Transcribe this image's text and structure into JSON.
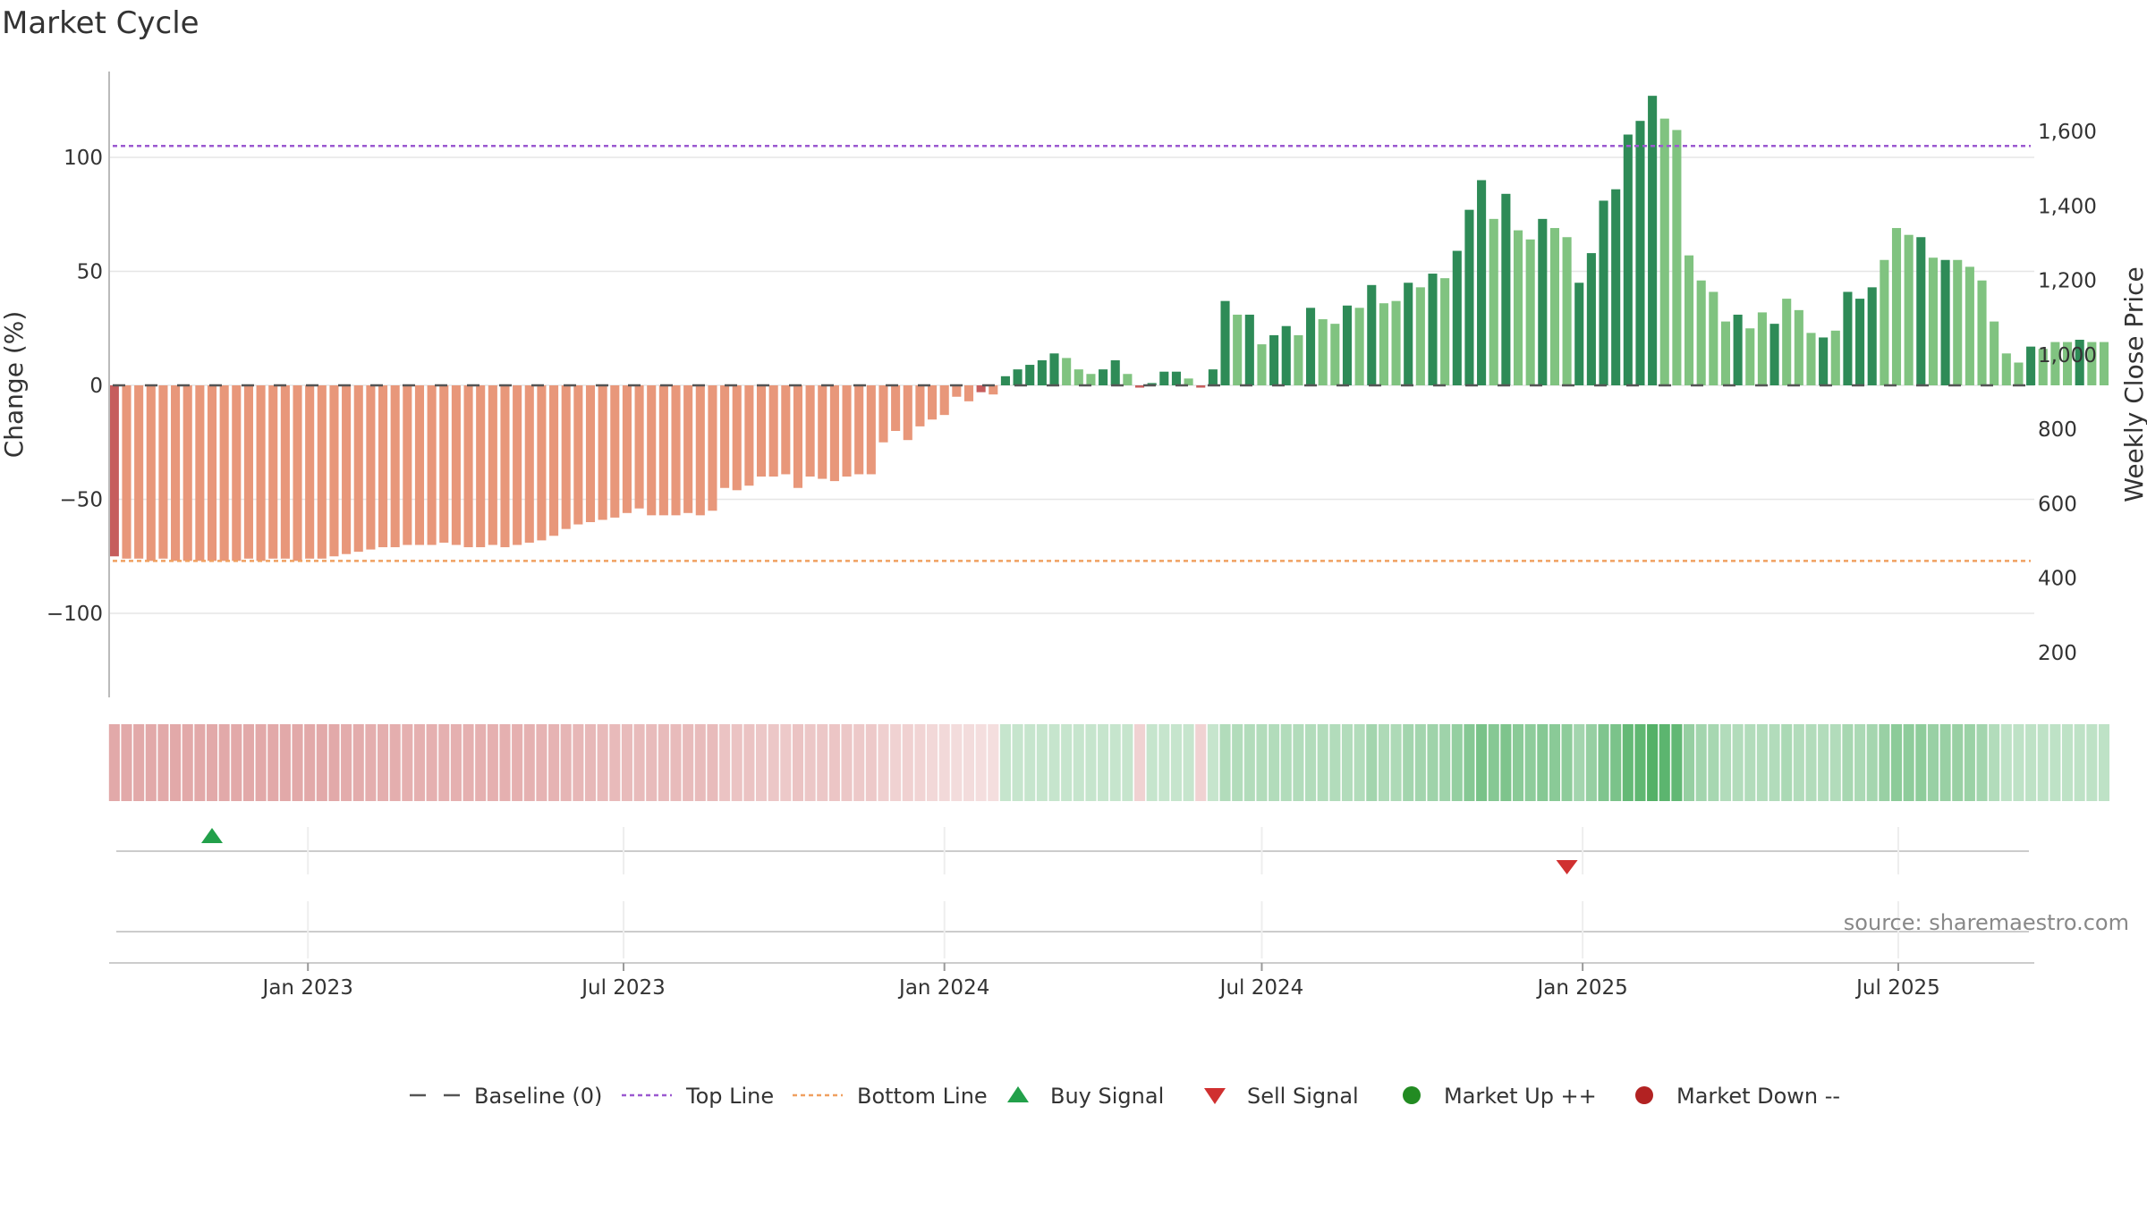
{
  "title": "Market Cycle",
  "source": "source: sharemaestro.com",
  "colors": {
    "bear_dark": "#c65d5d",
    "bear_light": "#e8977a",
    "bull_dark": "#2e8b57",
    "bull_light": "#80c380",
    "top_line": "#9b59d0",
    "bottom_line": "#f0a060",
    "baseline": "#555555",
    "buy": "#22a04a",
    "sell": "#d03030",
    "market_up": "#228b22",
    "market_down": "#b22222"
  },
  "chart_data": {
    "type": "bar",
    "title": "Market Cycle",
    "ylabel": "Change (%)",
    "y2label": "Weekly Close Price",
    "ylim": [
      -138,
      138
    ],
    "y2lim": [
      100,
      1730
    ],
    "yticks": [
      "100",
      "50",
      "0",
      "−50",
      "−100"
    ],
    "ytick_values": [
      100,
      50,
      0,
      -50,
      -100
    ],
    "y2ticks": [
      "1,600",
      "1,400",
      "1,200",
      "1,000",
      "800",
      "600",
      "400",
      "200"
    ],
    "y2tick_values": [
      1600,
      1400,
      1200,
      1000,
      800,
      600,
      400,
      200
    ],
    "x_start": "2022-09-12",
    "x_step_days": 7,
    "xlim": [
      "2022-09-09",
      "2025-09-17"
    ],
    "xticks": [
      {
        "date": "2023-01-01",
        "label": "Jan 2023"
      },
      {
        "date": "2023-07-01",
        "label": "Jul 2023"
      },
      {
        "date": "2024-01-01",
        "label": "Jan 2024"
      },
      {
        "date": "2024-07-01",
        "label": "Jul 2024"
      },
      {
        "date": "2025-01-01",
        "label": "Jan 2025"
      },
      {
        "date": "2025-07-01",
        "label": "Jul 2025"
      }
    ],
    "top_line": 105,
    "bottom_line": -77,
    "baseline": 0,
    "grid": true,
    "legend_position": "bottom",
    "values": [
      -75,
      -76,
      -76,
      -77,
      -76,
      -77,
      -77,
      -77,
      -77,
      -77,
      -77,
      -76,
      -77,
      -76,
      -76,
      -77,
      -76,
      -76,
      -75,
      -74,
      -73,
      -72,
      -71,
      -71,
      -70,
      -70,
      -70,
      -69,
      -70,
      -71,
      -71,
      -70,
      -71,
      -70,
      -69,
      -68,
      -66,
      -63,
      -61,
      -60,
      -59,
      -58,
      -56,
      -54,
      -57,
      -57,
      -57,
      -56,
      -57,
      -55,
      -45,
      -46,
      -44,
      -40,
      -40,
      -39,
      -45,
      -40,
      -41,
      -42,
      -40,
      -39,
      -39,
      -25,
      -20,
      -24,
      -18,
      -15,
      -13,
      -5,
      -7,
      -3,
      -4,
      4,
      7,
      9,
      11,
      14,
      12,
      7,
      5,
      7,
      11,
      5,
      -1,
      1,
      6,
      6,
      3,
      -1,
      7,
      37,
      31,
      31,
      18,
      22,
      26,
      22,
      34,
      29,
      27,
      35,
      34,
      44,
      36,
      37,
      45,
      43,
      49,
      47,
      59,
      77,
      90,
      73,
      84,
      68,
      64,
      73,
      69,
      65,
      45,
      58,
      81,
      86,
      110,
      116,
      127,
      117,
      112,
      57,
      46,
      41,
      28,
      31,
      25,
      32,
      27,
      38,
      33,
      23,
      21,
      24,
      41,
      38,
      43,
      55,
      69,
      66,
      65,
      56,
      55,
      55,
      52,
      46,
      28,
      14,
      10,
      17,
      16,
      19,
      19,
      20,
      19,
      19
    ],
    "shade": [
      0,
      1,
      1,
      1,
      1,
      1,
      1,
      1,
      1,
      1,
      1,
      1,
      1,
      1,
      1,
      1,
      1,
      1,
      1,
      1,
      1,
      1,
      1,
      1,
      1,
      1,
      1,
      1,
      1,
      1,
      1,
      1,
      1,
      1,
      1,
      1,
      1,
      1,
      1,
      1,
      1,
      1,
      1,
      1,
      1,
      1,
      1,
      1,
      1,
      1,
      1,
      1,
      1,
      1,
      1,
      1,
      1,
      1,
      1,
      1,
      1,
      1,
      1,
      1,
      1,
      1,
      1,
      1,
      1,
      1,
      1,
      0,
      1,
      0,
      0,
      0,
      0,
      0,
      1,
      1,
      1,
      0,
      0,
      1,
      0,
      0,
      0,
      0,
      1,
      0,
      0,
      0,
      1,
      0,
      1,
      0,
      0,
      1,
      0,
      1,
      1,
      0,
      1,
      0,
      1,
      1,
      0,
      1,
      0,
      1,
      0,
      0,
      0,
      1,
      0,
      1,
      1,
      0,
      1,
      1,
      0,
      0,
      0,
      0,
      0,
      0,
      0,
      1,
      1,
      1,
      1,
      1,
      1,
      0,
      1,
      1,
      0,
      1,
      1,
      1,
      0,
      1,
      0,
      0,
      0,
      1,
      1,
      1,
      0,
      1,
      0,
      1,
      1,
      1,
      1,
      1,
      1,
      0,
      1,
      1,
      1,
      0,
      1,
      1
    ],
    "strip_intensity": [
      -0.45,
      -0.45,
      -0.45,
      -0.45,
      -0.45,
      -0.45,
      -0.45,
      -0.45,
      -0.45,
      -0.45,
      -0.45,
      -0.45,
      -0.45,
      -0.45,
      -0.45,
      -0.45,
      -0.45,
      -0.45,
      -0.45,
      -0.43,
      -0.42,
      -0.41,
      -0.41,
      -0.41,
      -0.4,
      -0.4,
      -0.4,
      -0.4,
      -0.4,
      -0.4,
      -0.4,
      -0.4,
      -0.4,
      -0.4,
      -0.39,
      -0.38,
      -0.37,
      -0.36,
      -0.35,
      -0.34,
      -0.33,
      -0.33,
      -0.32,
      -0.31,
      -0.32,
      -0.32,
      -0.32,
      -0.31,
      -0.32,
      -0.31,
      -0.26,
      -0.26,
      -0.25,
      -0.23,
      -0.23,
      -0.22,
      -0.26,
      -0.23,
      -0.23,
      -0.24,
      -0.23,
      -0.22,
      -0.22,
      -0.17,
      -0.15,
      -0.16,
      -0.13,
      -0.11,
      -0.1,
      -0.07,
      -0.07,
      -0.06,
      -0.06,
      0.06,
      0.06,
      0.06,
      0.06,
      0.06,
      0.06,
      0.06,
      0.06,
      0.06,
      0.06,
      0.06,
      -0.15,
      0.06,
      0.06,
      0.06,
      0.06,
      -0.15,
      0.06,
      0.14,
      0.14,
      0.14,
      0.14,
      0.14,
      0.14,
      0.14,
      0.14,
      0.14,
      0.14,
      0.14,
      0.14,
      0.2,
      0.16,
      0.16,
      0.2,
      0.2,
      0.22,
      0.22,
      0.26,
      0.32,
      0.37,
      0.32,
      0.35,
      0.3,
      0.28,
      0.32,
      0.3,
      0.28,
      0.2,
      0.25,
      0.34,
      0.36,
      0.45,
      0.47,
      0.52,
      0.48,
      0.46,
      0.25,
      0.2,
      0.18,
      0.14,
      0.14,
      0.14,
      0.14,
      0.14,
      0.17,
      0.14,
      0.14,
      0.14,
      0.14,
      0.18,
      0.17,
      0.19,
      0.24,
      0.29,
      0.28,
      0.28,
      0.24,
      0.24,
      0.24,
      0.23,
      0.2,
      0.14,
      0.09,
      0.09,
      0.09,
      0.09,
      0.09,
      0.09,
      0.09,
      0.09,
      0.09
    ],
    "signals": [
      {
        "type": "buy",
        "date": "2022-11-07"
      },
      {
        "type": "sell",
        "date": "2024-12-23"
      }
    ],
    "legend": [
      {
        "key": "baseline",
        "label": "Baseline (0)"
      },
      {
        "key": "top",
        "label": "Top Line"
      },
      {
        "key": "bottom",
        "label": "Bottom Line"
      },
      {
        "key": "buy",
        "label": "Buy Signal"
      },
      {
        "key": "sell",
        "label": "Sell Signal"
      },
      {
        "key": "up",
        "label": "Market Up ++"
      },
      {
        "key": "down",
        "label": "Market Down --"
      }
    ]
  }
}
